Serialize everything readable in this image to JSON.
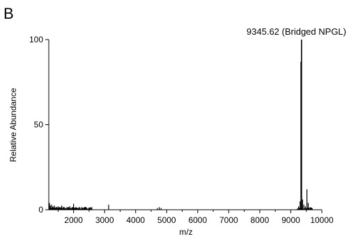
{
  "chart_data": {
    "type": "line",
    "panel_label": "B",
    "xlabel": "m/z",
    "ylabel": "Relative Abundance",
    "xlim": [
      1200,
      10000
    ],
    "ylim": [
      0,
      100
    ],
    "x_ticks": [
      2000,
      3000,
      4000,
      5000,
      6000,
      7000,
      8000,
      9000,
      10000
    ],
    "y_ticks": [
      0,
      50,
      100
    ],
    "grid": false,
    "annotation": {
      "text": "9345.62 (Bridged NPGL)",
      "x": 9345.62,
      "y": 100
    },
    "series": [
      {
        "peaks": [
          {
            "x": 1220,
            "y": 4
          },
          {
            "x": 1250,
            "y": 2.5
          },
          {
            "x": 1290,
            "y": 3
          },
          {
            "x": 1330,
            "y": 2
          },
          {
            "x": 1380,
            "y": 2.5
          },
          {
            "x": 1440,
            "y": 1.5
          },
          {
            "x": 1500,
            "y": 2
          },
          {
            "x": 1560,
            "y": 1.5
          },
          {
            "x": 1620,
            "y": 2.5
          },
          {
            "x": 1680,
            "y": 1.5
          },
          {
            "x": 1740,
            "y": 1
          },
          {
            "x": 1820,
            "y": 1.5
          },
          {
            "x": 1880,
            "y": 2
          },
          {
            "x": 1950,
            "y": 1.5
          },
          {
            "x": 2000,
            "y": 3.5
          },
          {
            "x": 2350,
            "y": 1.5
          },
          {
            "x": 2420,
            "y": 1
          },
          {
            "x": 3130,
            "y": 3
          },
          {
            "x": 4700,
            "y": 1
          },
          {
            "x": 4760,
            "y": 1.5
          },
          {
            "x": 4820,
            "y": 1
          },
          {
            "x": 9250,
            "y": 2
          },
          {
            "x": 9300,
            "y": 5
          },
          {
            "x": 9330,
            "y": 87
          },
          {
            "x": 9345.62,
            "y": 100
          },
          {
            "x": 9380,
            "y": 6
          },
          {
            "x": 9420,
            "y": 3
          },
          {
            "x": 9470,
            "y": 2
          },
          {
            "x": 9520,
            "y": 12
          },
          {
            "x": 9560,
            "y": 4
          },
          {
            "x": 9620,
            "y": 1.5
          }
        ]
      }
    ]
  }
}
